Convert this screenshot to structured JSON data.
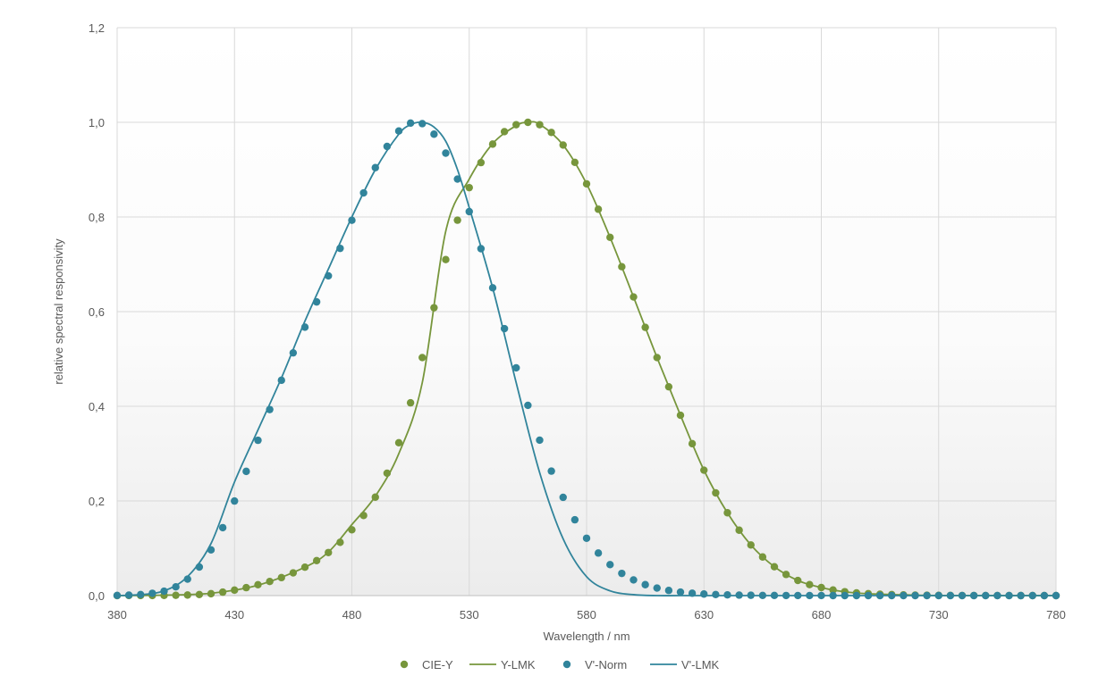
{
  "chart_data": {
    "type": "scatter",
    "title": "",
    "xlabel": "Wavelength / nm",
    "ylabel": "relative spectral responsivity",
    "xlim": [
      380,
      780
    ],
    "ylim": [
      0,
      1.2
    ],
    "x_ticks": [
      "380",
      "430",
      "480",
      "530",
      "580",
      "630",
      "680",
      "730",
      "780"
    ],
    "y_ticks": [
      "0,0",
      "0,2",
      "0,4",
      "0,6",
      "0,8",
      "1,0",
      "1,2"
    ],
    "grid": true,
    "legend_position": "bottom",
    "colors": {
      "green": "#77963c",
      "blue": "#31849b"
    },
    "series": [
      {
        "name": "CIE-Y",
        "kind": "markers",
        "color": "#77963c",
        "x": [
          380,
          385,
          390,
          395,
          400,
          405,
          410,
          415,
          420,
          425,
          430,
          435,
          440,
          445,
          450,
          455,
          460,
          465,
          470,
          475,
          480,
          485,
          490,
          495,
          500,
          505,
          510,
          515,
          520,
          525,
          530,
          535,
          540,
          545,
          550,
          555,
          560,
          565,
          570,
          575,
          580,
          585,
          590,
          595,
          600,
          605,
          610,
          615,
          620,
          625,
          630,
          635,
          640,
          645,
          650,
          655,
          660,
          665,
          670,
          675,
          680,
          685,
          690,
          695,
          700,
          705,
          710,
          715,
          720,
          725,
          730,
          735,
          740,
          745,
          750,
          755,
          760,
          765,
          770,
          775,
          780
        ],
        "y": [
          0.0,
          0.0001,
          0.0001,
          0.0002,
          0.0004,
          0.0006,
          0.0012,
          0.0022,
          0.004,
          0.0073,
          0.0116,
          0.0168,
          0.023,
          0.0298,
          0.038,
          0.048,
          0.06,
          0.0739,
          0.091,
          0.1126,
          0.139,
          0.1693,
          0.208,
          0.2586,
          0.323,
          0.4073,
          0.503,
          0.6082,
          0.71,
          0.7932,
          0.862,
          0.9149,
          0.954,
          0.9803,
          0.995,
          1.0,
          0.995,
          0.9786,
          0.952,
          0.9154,
          0.87,
          0.8163,
          0.757,
          0.6949,
          0.631,
          0.5668,
          0.503,
          0.4412,
          0.381,
          0.321,
          0.265,
          0.217,
          0.175,
          0.1382,
          0.107,
          0.0816,
          0.061,
          0.0446,
          0.032,
          0.0232,
          0.017,
          0.0119,
          0.0082,
          0.0057,
          0.0041,
          0.0029,
          0.0021,
          0.0015,
          0.001,
          0.0007,
          0.0005,
          0.0004,
          0.0002,
          0.0002,
          0.0001,
          0.0001,
          0.0001,
          0.0,
          0.0,
          0.0,
          0.0
        ]
      },
      {
        "name": "Y-LMK",
        "kind": "line",
        "color": "#77963c",
        "x": [
          380,
          400,
          420,
          440,
          460,
          470,
          480,
          490,
          500,
          510,
          520,
          530,
          540,
          550,
          555,
          560,
          570,
          580,
          590,
          600,
          610,
          620,
          630,
          640,
          650,
          660,
          670,
          680,
          690,
          700,
          720,
          740,
          780
        ],
        "y": [
          0.0,
          0.001,
          0.005,
          0.022,
          0.06,
          0.092,
          0.15,
          0.21,
          0.3,
          0.45,
          0.77,
          0.88,
          0.955,
          0.993,
          1.0,
          0.996,
          0.952,
          0.87,
          0.757,
          0.631,
          0.503,
          0.381,
          0.265,
          0.175,
          0.107,
          0.061,
          0.032,
          0.017,
          0.008,
          0.004,
          0.001,
          0.0,
          0.0
        ]
      },
      {
        "name": "V'-Norm",
        "kind": "markers",
        "color": "#31849b",
        "x": [
          380,
          385,
          390,
          395,
          400,
          405,
          410,
          415,
          420,
          425,
          430,
          435,
          440,
          445,
          450,
          455,
          460,
          465,
          470,
          475,
          480,
          485,
          490,
          495,
          500,
          505,
          510,
          515,
          520,
          525,
          530,
          535,
          540,
          545,
          550,
          555,
          560,
          565,
          570,
          575,
          580,
          585,
          590,
          595,
          600,
          605,
          610,
          615,
          620,
          625,
          630,
          635,
          640,
          645,
          650,
          655,
          660,
          665,
          670,
          675,
          680,
          685,
          690,
          695,
          700,
          705,
          710,
          715,
          720,
          725,
          730,
          735,
          740,
          745,
          750,
          755,
          760,
          765,
          770,
          775,
          780
        ],
        "y": [
          0.0003,
          0.001,
          0.0022,
          0.0049,
          0.0093,
          0.0185,
          0.0348,
          0.0604,
          0.0966,
          0.1436,
          0.1998,
          0.2625,
          0.3281,
          0.3931,
          0.455,
          0.5129,
          0.5672,
          0.6205,
          0.6756,
          0.7337,
          0.793,
          0.8509,
          0.9043,
          0.9491,
          0.9817,
          0.9984,
          0.9972,
          0.975,
          0.9349,
          0.8801,
          0.8113,
          0.733,
          0.6504,
          0.5641,
          0.4812,
          0.402,
          0.3284,
          0.263,
          0.2076,
          0.1602,
          0.1212,
          0.0899,
          0.0655,
          0.0469,
          0.0331,
          0.0231,
          0.0159,
          0.0109,
          0.0074,
          0.005,
          0.0033,
          0.0022,
          0.0015,
          0.001,
          0.0007,
          0.0004,
          0.0003,
          0.0002,
          0.0001,
          0.0001,
          0.0001,
          0.0,
          0.0,
          0.0,
          0.0,
          0.0,
          0.0,
          0.0,
          0.0,
          0.0,
          0.0,
          0.0,
          0.0,
          0.0,
          0.0,
          0.0,
          0.0,
          0.0,
          0.0,
          0.0,
          0.0
        ]
      },
      {
        "name": "V'-LMK",
        "kind": "line",
        "color": "#31849b",
        "x": [
          380,
          390,
          400,
          410,
          420,
          430,
          440,
          450,
          460,
          470,
          480,
          490,
          500,
          505,
          510,
          515,
          520,
          525,
          530,
          540,
          550,
          560,
          570,
          580,
          590,
          600,
          610,
          620,
          640,
          700,
          780
        ],
        "y": [
          0.0,
          0.002,
          0.01,
          0.04,
          0.11,
          0.24,
          0.35,
          0.46,
          0.58,
          0.69,
          0.8,
          0.9,
          0.975,
          0.995,
          1.0,
          0.99,
          0.96,
          0.9,
          0.82,
          0.65,
          0.45,
          0.26,
          0.12,
          0.04,
          0.01,
          0.002,
          0.0,
          0.0,
          0.0,
          0.0,
          0.0
        ]
      }
    ]
  }
}
